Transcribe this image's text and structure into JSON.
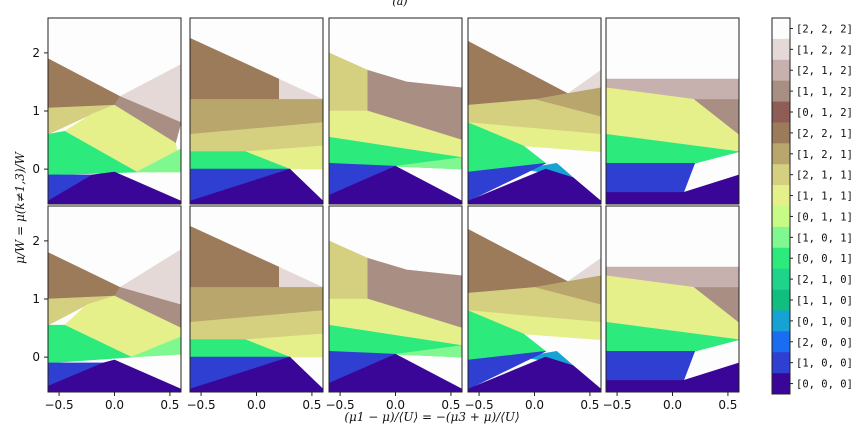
{
  "header_label": "(a)",
  "chart_data": {
    "type": "heatmap",
    "xlabel": "(μ1 − μ)/⟨U⟩ = −(μ3 + μ)/⟨U⟩",
    "ylabel": "μ/W = μ(k≠1,3)/W",
    "xlim": [
      -0.6,
      0.6
    ],
    "ylim": [
      -0.6,
      2.6
    ],
    "xticks": [
      "−0.5",
      "0.0",
      "0.5"
    ],
    "yticks": [
      "0",
      "1",
      "2"
    ],
    "rows": 2,
    "cols": 5,
    "colorbar": [
      {
        "label": "[2, 2, 2]",
        "color": "#fdfdfd"
      },
      {
        "label": "[1, 2, 2]",
        "color": "#e5d9d8"
      },
      {
        "label": "[2, 1, 2]",
        "color": "#c7b1ae"
      },
      {
        "label": "[1, 1, 2]",
        "color": "#a98e84"
      },
      {
        "label": "[0, 1, 2]",
        "color": "#8e5e56"
      },
      {
        "label": "[2, 2, 1]",
        "color": "#9c7b5b"
      },
      {
        "label": "[1, 2, 1]",
        "color": "#b8a66c"
      },
      {
        "label": "[2, 1, 1]",
        "color": "#d5cf80"
      },
      {
        "label": "[1, 1, 1]",
        "color": "#e5f08a"
      },
      {
        "label": "[0, 1, 1]",
        "color": "#c8fb86"
      },
      {
        "label": "[1, 0, 1]",
        "color": "#80f890"
      },
      {
        "label": "[0, 0, 1]",
        "color": "#2cea7c"
      },
      {
        "label": "[2, 1, 0]",
        "color": "#1ed48a"
      },
      {
        "label": "[1, 1, 0]",
        "color": "#10bf7e"
      },
      {
        "label": "[0, 1, 0]",
        "color": "#16a2d2"
      },
      {
        "label": "[2, 0, 0]",
        "color": "#1a6cf0"
      },
      {
        "label": "[1, 0, 0]",
        "color": "#2f3fd2"
      },
      {
        "label": "[0, 0, 0]",
        "color": "#3a0698"
      }
    ],
    "panel_colors": {
      "white": "#fdfdfd",
      "pink": "#e5d9d8",
      "mauve": "#c7b1ae",
      "taupe": "#a98e84",
      "maroon": "#8e5e56",
      "brown": "#9c7b5b",
      "olive": "#b8a66c",
      "khaki": "#d5cf80",
      "lime": "#e5f08a",
      "mint": "#80f890",
      "green": "#2cea7c",
      "teal": "#10bf7e",
      "cyan": "#16a2d2",
      "blue": "#2f3fd2",
      "indigo": "#3a0698"
    }
  }
}
